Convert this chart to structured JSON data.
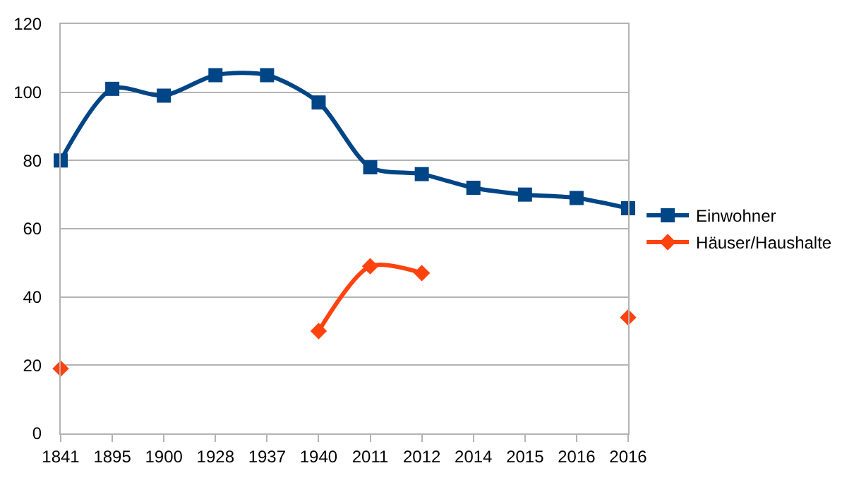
{
  "chart_data": {
    "type": "line",
    "categories": [
      "1841",
      "1895",
      "1900",
      "1928",
      "1937",
      "1940",
      "2011",
      "2012",
      "2014",
      "2015",
      "2016",
      "2016"
    ],
    "series": [
      {
        "name": "Einwohner",
        "color": "#004586",
        "marker": "square",
        "values": [
          80,
          101,
          99,
          105,
          105,
          97,
          78,
          76,
          72,
          70,
          69,
          66
        ]
      },
      {
        "name": "Häuser/Haushalte",
        "color": "#ff420e",
        "marker": "diamond",
        "values": [
          19,
          null,
          null,
          null,
          null,
          30,
          49,
          47,
          null,
          null,
          null,
          34
        ]
      }
    ],
    "ylim": [
      0,
      120
    ],
    "yticks": [
      0,
      20,
      40,
      60,
      80,
      100,
      120
    ],
    "grid": "y",
    "legend": "right",
    "line_style": "solid"
  }
}
